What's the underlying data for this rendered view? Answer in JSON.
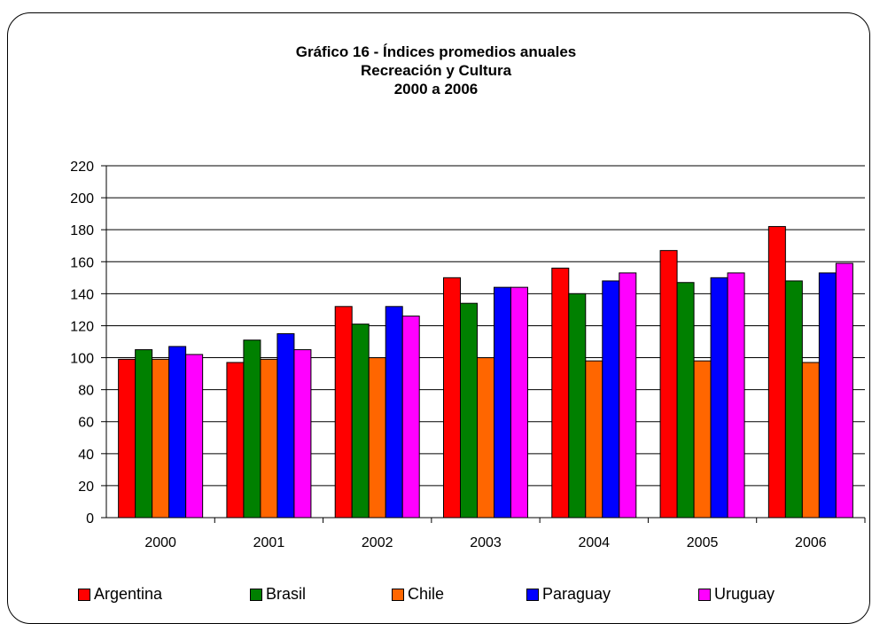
{
  "chart_data": {
    "type": "bar",
    "title": "Gráfico 16 - Índices promedios anuales",
    "subtitle_lines": [
      "Recreación y Cultura",
      "2000 a 2006"
    ],
    "xlabel": "",
    "ylabel": "",
    "ylim": [
      0,
      220
    ],
    "yticks": [
      0,
      20,
      40,
      60,
      80,
      100,
      120,
      140,
      160,
      180,
      200,
      220
    ],
    "grid": true,
    "legend_position": "bottom",
    "categories": [
      "2000",
      "2001",
      "2002",
      "2003",
      "2004",
      "2005",
      "2006"
    ],
    "series": [
      {
        "name": "Argentina",
        "color": "#ff0000",
        "values": [
          99,
          97,
          132,
          150,
          156,
          167,
          182
        ]
      },
      {
        "name": "Brasil",
        "color": "#008000",
        "values": [
          105,
          111,
          121,
          134,
          140,
          147,
          148
        ]
      },
      {
        "name": "Chile",
        "color": "#ff6600",
        "values": [
          99,
          99,
          100,
          100,
          98,
          98,
          97
        ]
      },
      {
        "name": "Paraguay",
        "color": "#0000ff",
        "values": [
          107,
          115,
          132,
          144,
          148,
          150,
          153
        ]
      },
      {
        "name": "Uruguay",
        "color": "#ff00ff",
        "values": [
          102,
          105,
          126,
          144,
          153,
          153,
          159
        ]
      }
    ]
  }
}
